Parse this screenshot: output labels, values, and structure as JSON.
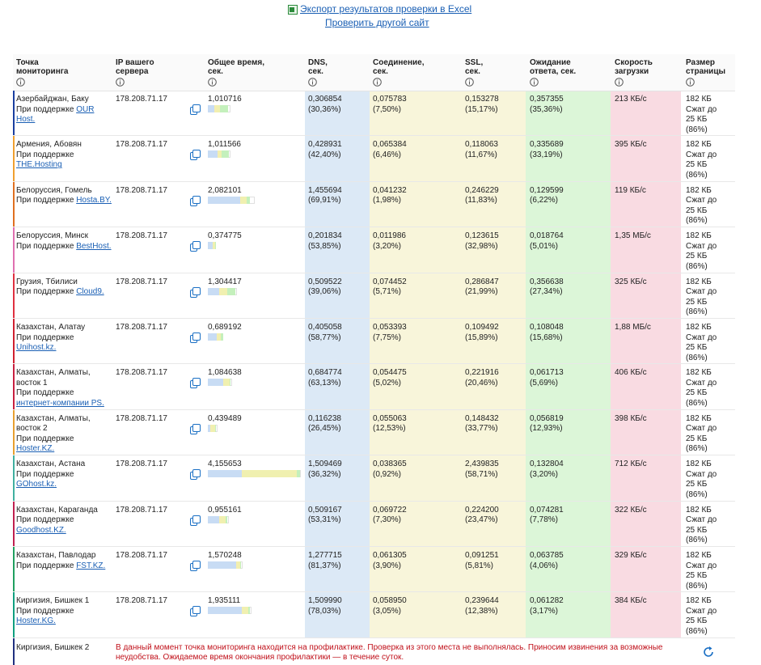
{
  "links": {
    "export": "Экспорт результатов проверки в Excel",
    "check": "Проверить другой сайт"
  },
  "table": {
    "headers": [
      "Точка\nмониторинга",
      "IP вашего\nсервера",
      "Общее время,\nсек.",
      "DNS,\nсек.",
      "Соединение,\nсек.",
      "SSL,\nсек.",
      "Ожидание\nответа, сек.",
      "Скорость\nзагрузки",
      "Размер\nстраницы"
    ],
    "rows": [
      {
        "location": "Азербайджан, Баку",
        "support": "При поддержке",
        "host": "OUR Host.",
        "ip": "178.208.71.17",
        "total": "1,010716",
        "dns": "0,306854",
        "dns_pct": "(30,36%)",
        "conn": "0,075783",
        "conn_pct": "(7,50%)",
        "ssl": "0,153278",
        "ssl_pct": "(15,17%)",
        "wait": "0,357355",
        "wait_pct": "(35,36%)",
        "speed": "213 КБ/с",
        "size": "182 КБ Сжат до 25 КБ (86%)",
        "color": "#1a3fa0"
      },
      {
        "location": "Армения, Абовян",
        "support": "При поддержке",
        "host": "THE.Hosting",
        "ip": "178.208.71.17",
        "total": "1,011566",
        "dns": "0,428931",
        "dns_pct": "(42,40%)",
        "conn": "0,065384",
        "conn_pct": "(6,46%)",
        "ssl": "0,118063",
        "ssl_pct": "(11,67%)",
        "wait": "0,335689",
        "wait_pct": "(33,19%)",
        "speed": "395 КБ/с",
        "size": "182 КБ Сжат до 25 КБ (86%)",
        "color": "#f0a030"
      },
      {
        "location": "Белоруссия, Гомель",
        "support": "При поддержке",
        "host": "Hosta.BY.",
        "ip": "178.208.71.17",
        "total": "2,082101",
        "dns": "1,455694",
        "dns_pct": "(69,91%)",
        "conn": "0,041232",
        "conn_pct": "(1,98%)",
        "ssl": "0,246229",
        "ssl_pct": "(11,83%)",
        "wait": "0,129599",
        "wait_pct": "(6,22%)",
        "speed": "119 КБ/с",
        "size": "182 КБ Сжат до 25 КБ (86%)",
        "color": "#e07020"
      },
      {
        "location": "Белоруссия, Минск",
        "support": "При поддержке",
        "host": "BestHost.",
        "ip": "178.208.71.17",
        "total": "0,374775",
        "dns": "0,201834",
        "dns_pct": "(53,85%)",
        "conn": "0,011986",
        "conn_pct": "(3,20%)",
        "ssl": "0,123615",
        "ssl_pct": "(32,98%)",
        "wait": "0,018764",
        "wait_pct": "(5,01%)",
        "speed": "1,35 МБ/с",
        "size": "182 КБ Сжат до 25 КБ (86%)",
        "color": "#e070b0"
      },
      {
        "location": "Грузия, Тбилиси",
        "support": "При поддержке",
        "host": "Cloud9.",
        "ip": "178.208.71.17",
        "total": "1,304417",
        "dns": "0,509522",
        "dns_pct": "(39,06%)",
        "conn": "0,074452",
        "conn_pct": "(5,71%)",
        "ssl": "0,286847",
        "ssl_pct": "(21,99%)",
        "wait": "0,356638",
        "wait_pct": "(27,34%)",
        "speed": "325 КБ/с",
        "size": "182 КБ Сжат до 25 КБ (86%)",
        "color": "#e03040"
      },
      {
        "location": "Казахстан, Алатау",
        "support": "При поддержке",
        "host": "Unihost.kz.",
        "ip": "178.208.71.17",
        "total": "0,689192",
        "dns": "0,405058",
        "dns_pct": "(58,77%)",
        "conn": "0,053393",
        "conn_pct": "(7,75%)",
        "ssl": "0,109492",
        "ssl_pct": "(15,89%)",
        "wait": "0,108048",
        "wait_pct": "(15,68%)",
        "speed": "1,88 МБ/с",
        "size": "182 КБ Сжат до 25 КБ (86%)",
        "color": "#d02030"
      },
      {
        "location": "Казахстан, Алматы, восток 1",
        "support": "При поддержке",
        "host": "интернет-компании PS.",
        "ip": "178.208.71.17",
        "total": "1,084638",
        "dns": "0,684774",
        "dns_pct": "(63,13%)",
        "conn": "0,054475",
        "conn_pct": "(5,02%)",
        "ssl": "0,221916",
        "ssl_pct": "(20,46%)",
        "wait": "0,061713",
        "wait_pct": "(5,69%)",
        "speed": "406 КБ/с",
        "size": "182 КБ Сжат до 25 КБ (86%)",
        "color": "#c82040"
      },
      {
        "location": "Казахстан, Алматы, восток 2",
        "support": "При поддержке",
        "host": "Hoster.KZ.",
        "ip": "178.208.71.17",
        "total": "0,439489",
        "dns": "0,116238",
        "dns_pct": "(26,45%)",
        "conn": "0,055063",
        "conn_pct": "(12,53%)",
        "ssl": "0,148432",
        "ssl_pct": "(33,77%)",
        "wait": "0,056819",
        "wait_pct": "(12,93%)",
        "speed": "398 КБ/с",
        "size": "182 КБ Сжат до 25 КБ (86%)",
        "color": "#e8a030"
      },
      {
        "location": "Казахстан, Астана",
        "support": "При поддержке",
        "host": "GOhost.kz.",
        "ip": "178.208.71.17",
        "total": "4,155653",
        "dns": "1,509469",
        "dns_pct": "(36,32%)",
        "conn": "0,038365",
        "conn_pct": "(0,92%)",
        "ssl": "2,439835",
        "ssl_pct": "(58,71%)",
        "wait": "0,132804",
        "wait_pct": "(3,20%)",
        "speed": "712 КБ/с",
        "size": "182 КБ Сжат до 25 КБ (86%)",
        "color": "#40b0a0"
      },
      {
        "location": "Казахстан, Караганда",
        "support": "При поддержке",
        "host": "Goodhost.KZ.",
        "ip": "178.208.71.17",
        "total": "0,955161",
        "dns": "0,509167",
        "dns_pct": "(53,31%)",
        "conn": "0,069722",
        "conn_pct": "(7,30%)",
        "ssl": "0,224200",
        "ssl_pct": "(23,47%)",
        "wait": "0,074281",
        "wait_pct": "(7,78%)",
        "speed": "322 КБ/с",
        "size": "182 КБ Сжат до 25 КБ (86%)",
        "color": "#c02050"
      },
      {
        "location": "Казахстан, Павлодар",
        "support": "При поддержке",
        "host": "FST.KZ.",
        "ip": "178.208.71.17",
        "total": "1,570248",
        "dns": "1,277715",
        "dns_pct": "(81,37%)",
        "conn": "0,061305",
        "conn_pct": "(3,90%)",
        "ssl": "0,091251",
        "ssl_pct": "(5,81%)",
        "wait": "0,063785",
        "wait_pct": "(4,06%)",
        "speed": "329 КБ/с",
        "size": "182 КБ Сжат до 25 КБ (86%)",
        "color": "#20a060"
      },
      {
        "location": "Киргизия, Бишкек 1",
        "support": "При поддержке",
        "host": "Hoster.KG.",
        "ip": "178.208.71.17",
        "total": "1,935111",
        "dns": "1,509990",
        "dns_pct": "(78,03%)",
        "conn": "0,058950",
        "conn_pct": "(3,05%)",
        "ssl": "0,239644",
        "ssl_pct": "(12,38%)",
        "wait": "0,061282",
        "wait_pct": "(3,17%)",
        "speed": "384 КБ/с",
        "size": "182 КБ Сжат до 25 КБ (86%)",
        "color": "#10a080"
      }
    ],
    "maintenance": {
      "location": "Киргизия, Бишкек 2",
      "message": "В данный момент точка мониторинга находится на профилактике. Проверка из этого места не выполнялась. Приносим извинения за возможные неудобства. Ожидаемое время окончания профилактики — в течение суток.",
      "color": "#203080"
    }
  }
}
